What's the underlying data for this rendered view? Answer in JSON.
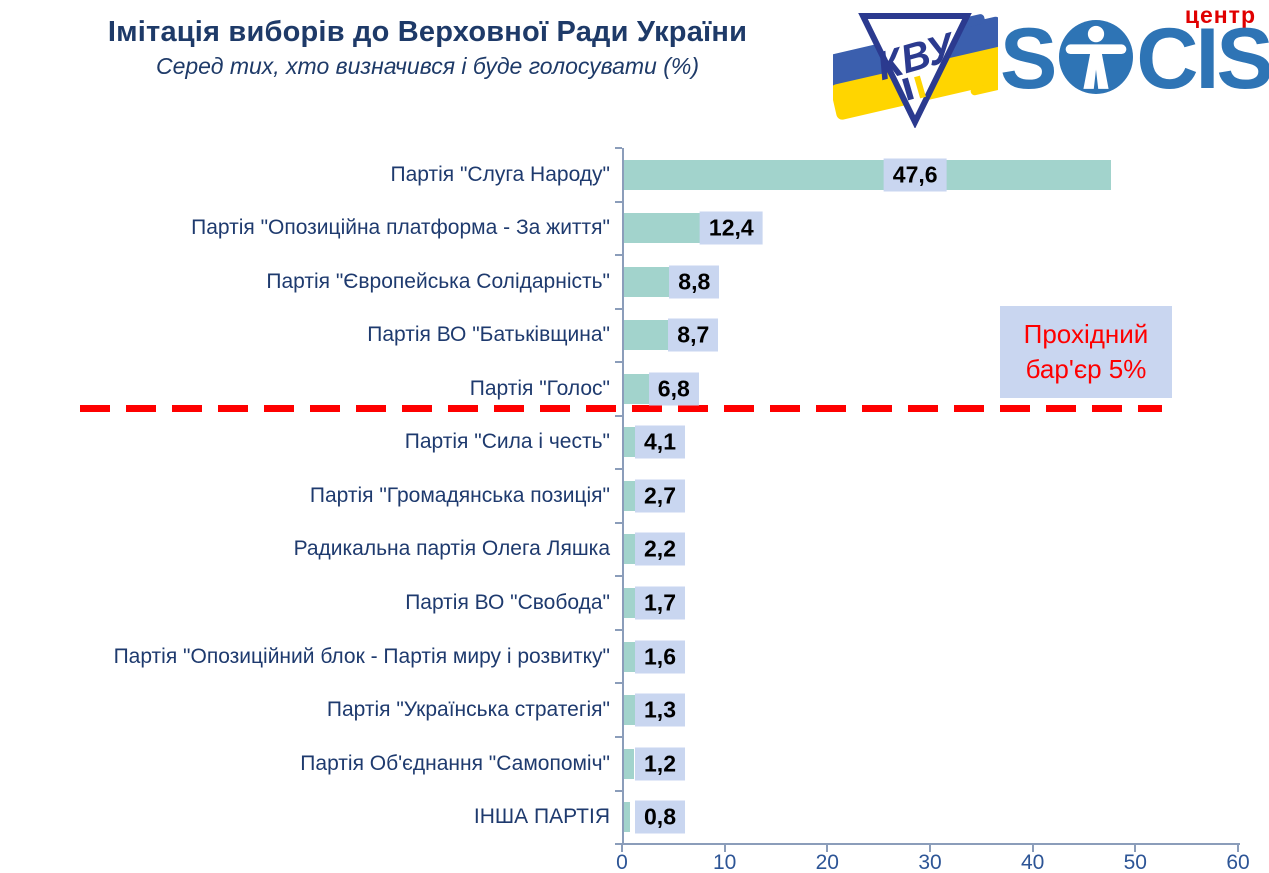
{
  "header": {
    "title": "Імітація виборів до Верховної Ради України",
    "subtitle": "Серед тих, хто визначився і буде голосувати (%)"
  },
  "logos": {
    "kvu_text": "КВУ",
    "socis_s": "S",
    "socis_cis": "CIS",
    "socis_center": "центр"
  },
  "chart_data": {
    "type": "bar",
    "orientation": "horizontal",
    "title": "Імітація виборів до Верховної Ради України",
    "subtitle": "Серед тих, хто визначився і буде голосувати (%)",
    "categories": [
      "Партія \"Слуга Народу\"",
      "Партія \"Опозиційна платформа - За життя\"",
      "Партія \"Європейська Солідарність\"",
      "Партія ВО \"Батьківщина\"",
      "Партія \"Голос\"",
      "Партія \"Сила і честь\"",
      "Партія \"Громадянська позиція\"",
      "Радикальна партія Олега Ляшка",
      "Партія ВО \"Свобода\"",
      "Партія \"Опозиційний блок - Партія миру і розвитку\"",
      "Партія \"Українська стратегія\"",
      "Партія Об'єднання \"Самопоміч\"",
      "ІНША ПАРТІЯ"
    ],
    "values": [
      47.6,
      12.4,
      8.8,
      8.7,
      6.8,
      4.1,
      2.7,
      2.2,
      1.7,
      1.6,
      1.3,
      1.2,
      0.8
    ],
    "value_labels": [
      "47,6",
      "12,4",
      "8,8",
      "8,7",
      "6,8",
      "4,1",
      "2,7",
      "2,2",
      "1,7",
      "1,6",
      "1,3",
      "1,2",
      "0,8"
    ],
    "xlim": [
      0,
      60
    ],
    "x_ticks": [
      0,
      10,
      20,
      30,
      40,
      50,
      60
    ],
    "grid": false,
    "legend": false,
    "threshold": {
      "value": 5,
      "label_line1": "Прохідний",
      "label_line2": "бар'єр 5%"
    },
    "colors": {
      "bar": "#a2d3cc",
      "value_label_bg": "#c9d6f0",
      "threshold_red": "#fe0000",
      "title_navy": "#1e3a68",
      "axis_line": "#8b9dba",
      "tick_label_blue": "#2d5596",
      "socis_blue": "#2e74b5",
      "socis_red": "#e00000",
      "flag_blue": "#3b5fae",
      "flag_yellow": "#ffd500",
      "kvu_navy": "#2b3a8f"
    }
  }
}
